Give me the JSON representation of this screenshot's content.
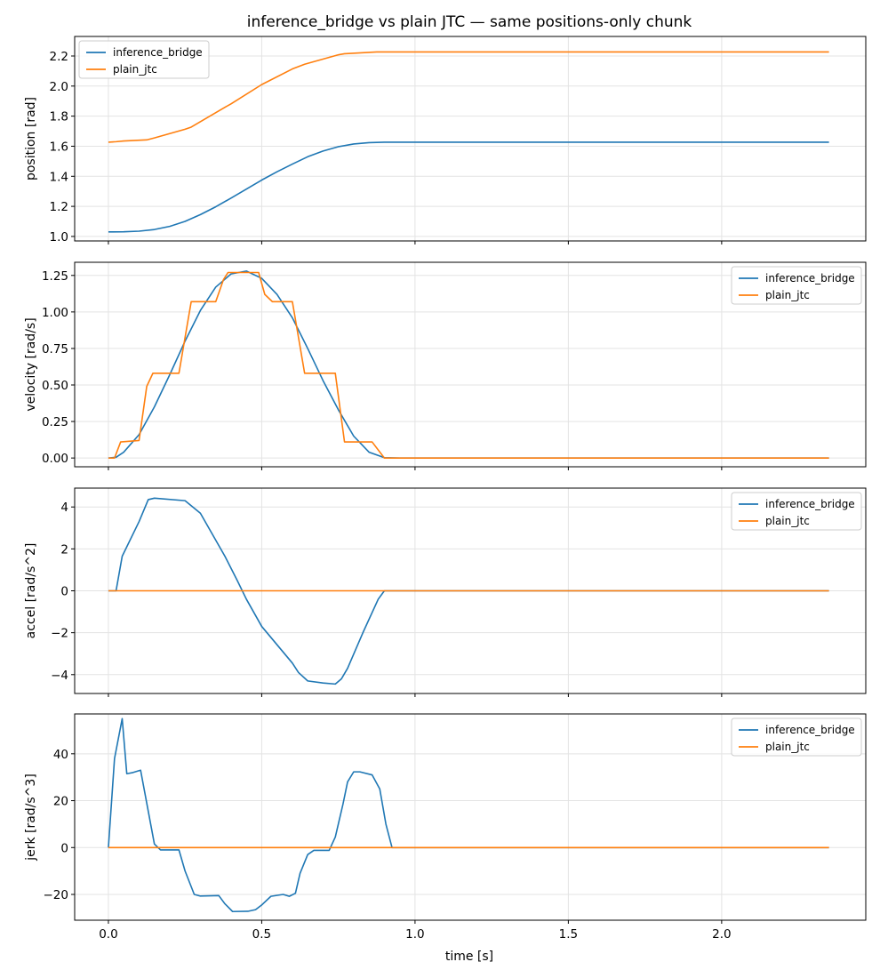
{
  "chart_data": {
    "type": "line",
    "title": "inference_bridge vs plain JTC — same positions-only chunk",
    "xlabel": "time [s]",
    "xlim": [
      -0.11,
      2.47
    ],
    "xticks": [
      0.0,
      0.5,
      1.0,
      1.5,
      2.0
    ],
    "xtick_labels": [
      "0.0",
      "0.5",
      "1.0",
      "1.5",
      "2.0"
    ],
    "grid": true,
    "colors": {
      "inference_bridge": "#1f77b4",
      "plain_jtc": "#ff7f0e"
    },
    "subplots": [
      {
        "ylabel": "position [rad]",
        "ylim": [
          0.97,
          2.33
        ],
        "yticks": [
          1.0,
          1.2,
          1.4,
          1.6,
          1.8,
          2.0,
          2.2
        ],
        "ytick_labels": [
          "1.0",
          "1.2",
          "1.4",
          "1.6",
          "1.8",
          "2.0",
          "2.2"
        ],
        "legend_loc": "upper left",
        "series": [
          {
            "name": "inference_bridge",
            "x": [
              0,
              0.05,
              0.1,
              0.15,
              0.2,
              0.25,
              0.3,
              0.35,
              0.4,
              0.45,
              0.5,
              0.55,
              0.6,
              0.65,
              0.7,
              0.75,
              0.8,
              0.85,
              0.9,
              1.0,
              2.35
            ],
            "y": [
              1.03,
              1.031,
              1.035,
              1.046,
              1.067,
              1.1,
              1.145,
              1.197,
              1.255,
              1.315,
              1.375,
              1.43,
              1.481,
              1.53,
              1.568,
              1.597,
              1.615,
              1.624,
              1.627,
              1.627,
              1.627
            ]
          },
          {
            "name": "plain_jtc",
            "x": [
              0,
              0.025,
              0.05,
              0.125,
              0.15,
              0.25,
              0.27,
              0.375,
              0.4,
              0.5,
              0.6,
              0.64,
              0.75,
              0.77,
              0.875,
              0.9,
              2.35
            ],
            "y": [
              1.627,
              1.63,
              1.635,
              1.642,
              1.655,
              1.713,
              1.727,
              1.853,
              1.882,
              2.01,
              2.114,
              2.145,
              2.208,
              2.215,
              2.227,
              2.227,
              2.227
            ]
          }
        ]
      },
      {
        "ylabel": "velocity [rad/s]",
        "ylim": [
          -0.06,
          1.34
        ],
        "yticks": [
          0.0,
          0.25,
          0.5,
          0.75,
          1.0,
          1.25
        ],
        "ytick_labels": [
          "0.00",
          "0.25",
          "0.50",
          "0.75",
          "1.00",
          "1.25"
        ],
        "legend_loc": "upper right",
        "series": [
          {
            "name": "inference_bridge",
            "x": [
              0,
              0.025,
              0.05,
              0.1,
              0.15,
              0.2,
              0.25,
              0.3,
              0.35,
              0.4,
              0.45,
              0.5,
              0.55,
              0.6,
              0.65,
              0.7,
              0.75,
              0.8,
              0.85,
              0.9,
              0.95,
              2.35
            ],
            "y": [
              0,
              0.005,
              0.04,
              0.16,
              0.35,
              0.57,
              0.8,
              1.01,
              1.17,
              1.26,
              1.28,
              1.23,
              1.12,
              0.96,
              0.75,
              0.53,
              0.33,
              0.15,
              0.04,
              0.002,
              0,
              0
            ]
          },
          {
            "name": "plain_jtc",
            "x": [
              0,
              0.02,
              0.04,
              0.1,
              0.125,
              0.145,
              0.23,
              0.27,
              0.35,
              0.375,
              0.39,
              0.49,
              0.51,
              0.535,
              0.6,
              0.64,
              0.74,
              0.77,
              0.86,
              0.9,
              2.35
            ],
            "y": [
              0,
              0,
              0.11,
              0.12,
              0.49,
              0.58,
              0.58,
              1.07,
              1.07,
              1.22,
              1.27,
              1.27,
              1.12,
              1.07,
              1.07,
              0.58,
              0.58,
              0.11,
              0.11,
              0,
              0
            ]
          }
        ]
      },
      {
        "ylabel": "accel [rad/s^2]",
        "ylim": [
          -4.9,
          4.9
        ],
        "yticks": [
          -4,
          -2,
          0,
          2,
          4
        ],
        "ytick_labels": [
          "−4",
          "−2",
          "0",
          "2",
          "4"
        ],
        "legend_loc": "upper right",
        "series": [
          {
            "name": "inference_bridge",
            "x": [
              0,
              0.025,
              0.045,
              0.1,
              0.13,
              0.15,
              0.25,
              0.3,
              0.38,
              0.42,
              0.45,
              0.5,
              0.6,
              0.62,
              0.65,
              0.7,
              0.74,
              0.76,
              0.78,
              0.83,
              0.88,
              0.9,
              0.92,
              2.35
            ],
            "y": [
              0,
              0,
              1.65,
              3.3,
              4.35,
              4.42,
              4.3,
              3.7,
              1.65,
              0.5,
              -0.4,
              -1.7,
              -3.45,
              -3.9,
              -4.3,
              -4.4,
              -4.45,
              -4.2,
              -3.7,
              -2.0,
              -0.4,
              0,
              0,
              0
            ]
          },
          {
            "name": "plain_jtc",
            "x": [
              0,
              2.35
            ],
            "y": [
              0,
              0
            ]
          }
        ]
      },
      {
        "ylabel": "jerk [rad/s^3]",
        "ylim": [
          -31,
          57
        ],
        "yticks": [
          -20,
          0,
          20,
          40
        ],
        "ytick_labels": [
          "−20",
          "0",
          "20",
          "40"
        ],
        "legend_loc": "upper right",
        "series": [
          {
            "name": "inference_bridge",
            "x": [
              0,
              0.02,
              0.045,
              0.06,
              0.08,
              0.105,
              0.125,
              0.15,
              0.17,
              0.23,
              0.25,
              0.28,
              0.3,
              0.36,
              0.38,
              0.405,
              0.455,
              0.48,
              0.5,
              0.53,
              0.57,
              0.59,
              0.61,
              0.625,
              0.65,
              0.67,
              0.72,
              0.74,
              0.765,
              0.78,
              0.8,
              0.82,
              0.86,
              0.885,
              0.905,
              0.925,
              2.35
            ],
            "y": [
              0,
              38,
              55,
              31.5,
              32,
              33,
              19,
              1.5,
              -1,
              -1,
              -10,
              -20,
              -20.7,
              -20.5,
              -24,
              -27.3,
              -27.2,
              -26.5,
              -24.5,
              -20.8,
              -20,
              -20.8,
              -19.5,
              -11,
              -3,
              -1.2,
              -1.2,
              4.5,
              18.5,
              28,
              32.3,
              32.3,
              31,
              25,
              10,
              0,
              0
            ]
          },
          {
            "name": "plain_jtc",
            "x": [
              0,
              2.35
            ],
            "y": [
              0,
              0
            ]
          }
        ]
      }
    ]
  }
}
